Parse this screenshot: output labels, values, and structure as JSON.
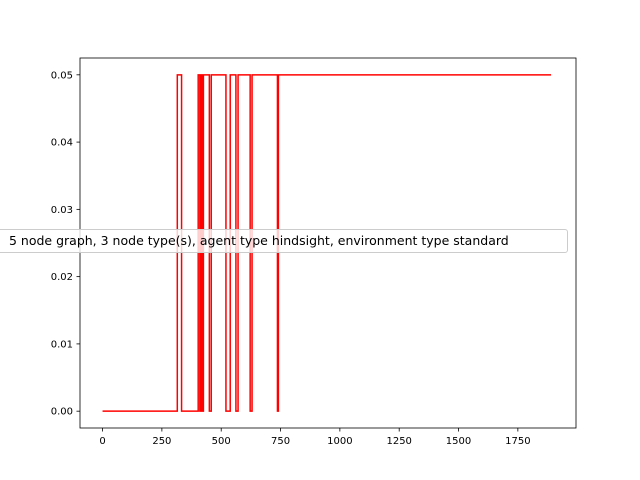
{
  "chart_data": {
    "type": "line",
    "step": true,
    "title": "",
    "xlabel": "",
    "ylabel": "",
    "xlim": [
      -95,
      1995
    ],
    "ylim": [
      -0.0025,
      0.0525
    ],
    "x_ticks": [
      0,
      250,
      500,
      750,
      1000,
      1250,
      1500,
      1750
    ],
    "y_ticks": [
      0.0,
      0.01,
      0.02,
      0.03,
      0.04,
      0.05
    ],
    "x_tick_labels": [
      "0",
      "250",
      "500",
      "750",
      "1000",
      "1250",
      "1500",
      "1750"
    ],
    "y_tick_labels": [
      "0.00",
      "0.01",
      "0.02",
      "0.03",
      "0.04",
      "0.05"
    ],
    "grid": false,
    "legend_position": "center-left",
    "series": [
      {
        "name": "5 node graph, 3 node type(s), agent type hindsight, environment type standard",
        "color": "#ff0000",
        "points": [
          [
            0,
            0
          ],
          [
            315,
            0
          ],
          [
            315,
            0.05
          ],
          [
            333,
            0.05
          ],
          [
            333,
            0
          ],
          [
            403,
            0
          ],
          [
            403,
            0.05
          ],
          [
            410,
            0.05
          ],
          [
            410,
            0
          ],
          [
            415,
            0
          ],
          [
            415,
            0.05
          ],
          [
            420,
            0.05
          ],
          [
            420,
            0
          ],
          [
            425,
            0
          ],
          [
            425,
            0.05
          ],
          [
            450,
            0.05
          ],
          [
            450,
            0
          ],
          [
            458,
            0
          ],
          [
            458,
            0.05
          ],
          [
            520,
            0.05
          ],
          [
            520,
            0
          ],
          [
            538,
            0
          ],
          [
            538,
            0.05
          ],
          [
            562,
            0.05
          ],
          [
            562,
            0
          ],
          [
            571,
            0
          ],
          [
            571,
            0.05
          ],
          [
            622,
            0.05
          ],
          [
            622,
            0
          ],
          [
            630,
            0
          ],
          [
            630,
            0.05
          ],
          [
            737,
            0.05
          ],
          [
            737,
            0
          ],
          [
            741,
            0
          ],
          [
            741,
            0.05
          ],
          [
            1890,
            0.05
          ]
        ]
      }
    ]
  }
}
